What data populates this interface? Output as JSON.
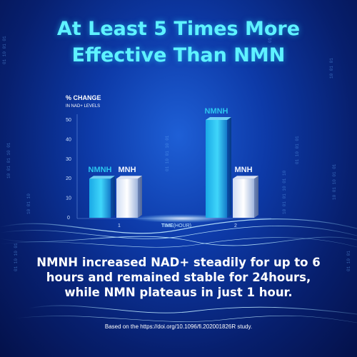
{
  "headline": {
    "line1": "At Least 5 Times More",
    "line2": "Effective Than NMN"
  },
  "body": {
    "line1": "NMNH increased NAD+ steadily for up to 6",
    "line2": "hours and remained stable for 24hours,",
    "line3": "while NMN plateaus in just 1 hour."
  },
  "footnote": "Based on the https://doi.org/10.1096/fi.202001826R study.",
  "colors": {
    "headline": "#5ef2ff",
    "nmnh": "#2bc6f0",
    "mnh": "#eef3ff"
  },
  "chart_data": {
    "type": "bar",
    "ylabel": "% CHANGE",
    "ylabel_sub": "IN NAD+ LEVELS",
    "xlabel_bold": "TIME",
    "xlabel_unit": "(HOUR)",
    "categories": [
      "1",
      "2"
    ],
    "series": [
      {
        "name": "NMNH",
        "values": [
          20,
          50
        ]
      },
      {
        "name": "MNH",
        "values": [
          20,
          20
        ]
      }
    ],
    "ylim": [
      0,
      55
    ],
    "yticks": [
      0,
      10,
      20,
      30,
      40,
      50
    ],
    "grid": false,
    "legend": "labels above bars"
  }
}
